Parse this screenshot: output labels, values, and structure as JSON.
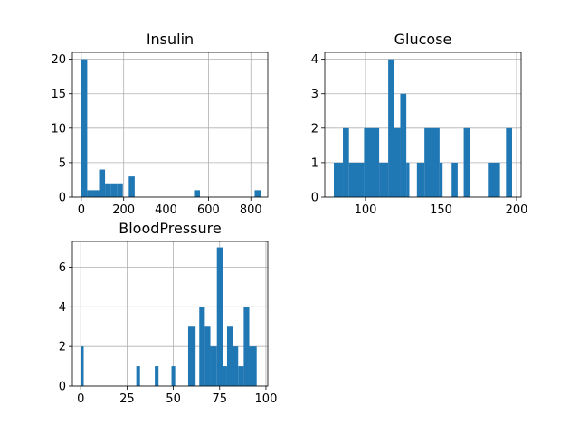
{
  "chart_data": [
    {
      "type": "bar",
      "title": "Insulin",
      "xlabel": "",
      "ylabel": "",
      "xlim": [
        -42,
        880
      ],
      "ylim": [
        0,
        21
      ],
      "xticks": [
        "0",
        "200",
        "400",
        "600",
        "800"
      ],
      "xtick_values": [
        0,
        200,
        400,
        600,
        800
      ],
      "yticks": [
        "0",
        "5",
        "10",
        "15",
        "20"
      ],
      "ytick_values": [
        0,
        5,
        10,
        15,
        20
      ],
      "grid": true,
      "bar_color": "#1f77b4",
      "bins": [
        {
          "x0": 0,
          "x1": 28,
          "count": 20
        },
        {
          "x0": 28,
          "x1": 56,
          "count": 1
        },
        {
          "x0": 56,
          "x1": 84,
          "count": 1
        },
        {
          "x0": 84,
          "x1": 112,
          "count": 4
        },
        {
          "x0": 112,
          "x1": 140,
          "count": 2
        },
        {
          "x0": 140,
          "x1": 168,
          "count": 2
        },
        {
          "x0": 168,
          "x1": 196,
          "count": 2
        },
        {
          "x0": 224,
          "x1": 252,
          "count": 3
        },
        {
          "x0": 532,
          "x1": 560,
          "count": 1
        },
        {
          "x0": 818,
          "x1": 846,
          "count": 1
        }
      ]
    },
    {
      "type": "bar",
      "title": "Glucose",
      "xlabel": "",
      "ylabel": "",
      "xlim": [
        73,
        203
      ],
      "ylim": [
        0,
        4.2
      ],
      "xticks": [
        "100",
        "150",
        "200"
      ],
      "xtick_values": [
        100,
        150,
        200
      ],
      "yticks": [
        "0",
        "1",
        "2",
        "3",
        "4"
      ],
      "ytick_values": [
        0,
        1,
        2,
        3,
        4
      ],
      "grid": true,
      "bar_color": "#1f77b4",
      "bins": [
        {
          "x0": 79,
          "x1": 85,
          "count": 1
        },
        {
          "x0": 85,
          "x1": 89,
          "count": 2
        },
        {
          "x0": 89,
          "x1": 99,
          "count": 1
        },
        {
          "x0": 99,
          "x1": 109,
          "count": 2
        },
        {
          "x0": 109,
          "x1": 115,
          "count": 1
        },
        {
          "x0": 115,
          "x1": 119,
          "count": 4
        },
        {
          "x0": 119,
          "x1": 123,
          "count": 2
        },
        {
          "x0": 123,
          "x1": 127,
          "count": 3
        },
        {
          "x0": 127,
          "x1": 129,
          "count": 1
        },
        {
          "x0": 134,
          "x1": 139,
          "count": 1
        },
        {
          "x0": 139,
          "x1": 149,
          "count": 2
        },
        {
          "x0": 149,
          "x1": 151,
          "count": 1
        },
        {
          "x0": 157,
          "x1": 161,
          "count": 1
        },
        {
          "x0": 165,
          "x1": 169,
          "count": 2
        },
        {
          "x0": 181,
          "x1": 189,
          "count": 1
        },
        {
          "x0": 193,
          "x1": 197,
          "count": 2
        }
      ]
    },
    {
      "type": "bar",
      "title": "BloodPressure",
      "xlabel": "",
      "ylabel": "",
      "xlim": [
        -4.5,
        101
      ],
      "ylim": [
        0,
        7.3
      ],
      "xticks": [
        "0",
        "25",
        "50",
        "75",
        "100"
      ],
      "xtick_values": [
        0,
        25,
        50,
        75,
        100
      ],
      "yticks": [
        "0",
        "2",
        "4",
        "6"
      ],
      "ytick_values": [
        0,
        2,
        4,
        6
      ],
      "grid": true,
      "bar_color": "#1f77b4",
      "bins": [
        {
          "x0": 0,
          "x1": 1.6,
          "count": 2
        },
        {
          "x0": 30,
          "x1": 32,
          "count": 1
        },
        {
          "x0": 40,
          "x1": 42,
          "count": 1
        },
        {
          "x0": 49,
          "x1": 51,
          "count": 1
        },
        {
          "x0": 58,
          "x1": 62,
          "count": 3
        },
        {
          "x0": 64,
          "x1": 67,
          "count": 4
        },
        {
          "x0": 67,
          "x1": 70,
          "count": 3
        },
        {
          "x0": 70,
          "x1": 73.5,
          "count": 2
        },
        {
          "x0": 73.5,
          "x1": 77,
          "count": 7
        },
        {
          "x0": 77,
          "x1": 79,
          "count": 1
        },
        {
          "x0": 79,
          "x1": 82,
          "count": 3
        },
        {
          "x0": 82,
          "x1": 85,
          "count": 2
        },
        {
          "x0": 85,
          "x1": 88,
          "count": 1
        },
        {
          "x0": 88,
          "x1": 91,
          "count": 4
        },
        {
          "x0": 91,
          "x1": 95,
          "count": 2
        }
      ]
    }
  ]
}
